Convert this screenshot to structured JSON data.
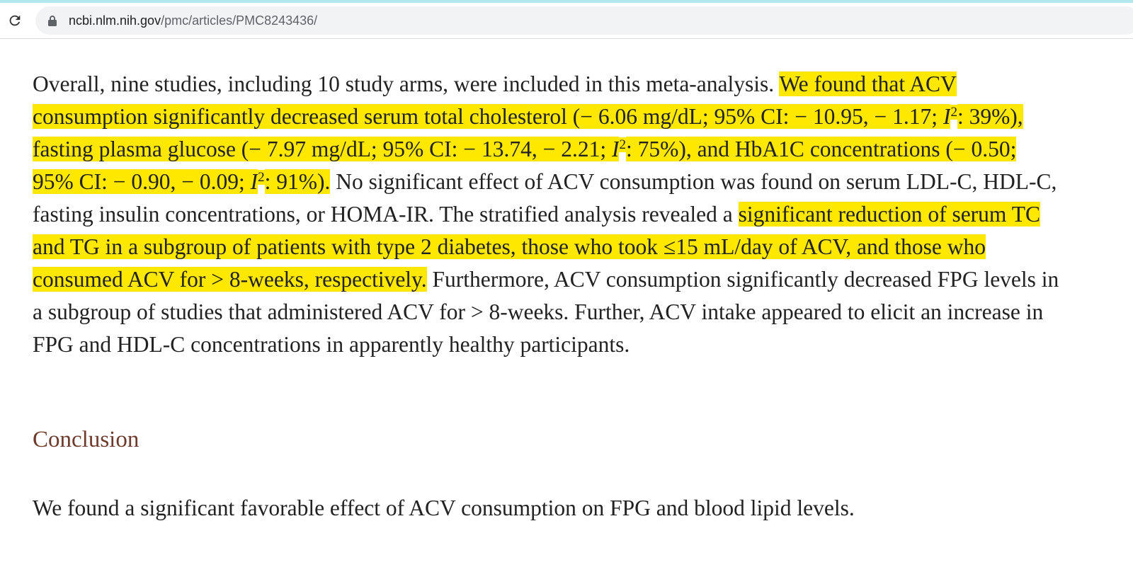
{
  "browser": {
    "url_host": "ncbi.nlm.nih.gov",
    "url_path": "/pmc/articles/PMC8243436/"
  },
  "paragraph": {
    "highlight_color": "#ffe800",
    "segments": [
      {
        "text": "Overall, nine studies, including 10 study arms, were included in this meta-analysis. ",
        "highlight": false,
        "style": "normal"
      },
      {
        "text": "We found that ACV consumption significantly decreased serum total cholesterol (− 6.06 mg/dL; 95% CI: − 10.95, − 1.17; ",
        "highlight": true,
        "style": "normal"
      },
      {
        "text": "I",
        "highlight": true,
        "style": "italic"
      },
      {
        "text": "2",
        "highlight": true,
        "style": "sup"
      },
      {
        "text": ": 39%), fasting plasma glucose (− 7.97 mg/dL; 95% CI: − 13.74, − 2.21; ",
        "highlight": true,
        "style": "normal"
      },
      {
        "text": "I",
        "highlight": true,
        "style": "italic"
      },
      {
        "text": "2",
        "highlight": true,
        "style": "sup"
      },
      {
        "text": ": 75%), and HbA1C concentrations (− 0.50; 95% CI: − 0.90, − 0.09; ",
        "highlight": true,
        "style": "normal"
      },
      {
        "text": "I",
        "highlight": true,
        "style": "italic"
      },
      {
        "text": "2",
        "highlight": true,
        "style": "sup"
      },
      {
        "text": ": 91%).",
        "highlight": true,
        "style": "normal"
      },
      {
        "text": " No significant effect of ACV consumption was found on serum LDL-C, HDL-C, fasting insulin concentrations, or HOMA-IR. The stratified analysis revealed a ",
        "highlight": false,
        "style": "normal"
      },
      {
        "text": "significant reduction of serum TC and TG in a subgroup of patients with type 2 diabetes, those who took ≤15 mL/day of ACV, and those who consumed ACV for > 8-weeks, respectively.",
        "highlight": true,
        "style": "normal"
      },
      {
        "text": " Furthermore, ACV consumption significantly decreased FPG levels in a subgroup of studies that administered ACV for > 8-weeks. Further, ACV intake appeared to elicit an increase in FPG and HDL-C concentrations in apparently healthy participants.",
        "highlight": false,
        "style": "normal"
      }
    ]
  },
  "conclusion": {
    "heading": "Conclusion",
    "text": "We found a significant favorable effect of ACV consumption on FPG and blood lipid levels."
  }
}
